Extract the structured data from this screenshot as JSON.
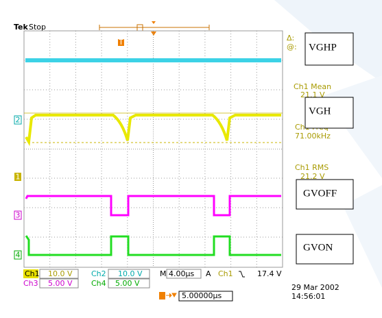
{
  "header": {
    "brand": "Tek",
    "status": "Stop",
    "trigger_marker": "T"
  },
  "channel_markers": {
    "ch2": "2",
    "ch1": "1",
    "ch3": "3",
    "ch4": "4"
  },
  "side_readouts": {
    "delta": "Δ:",
    "at": "@:",
    "mean_label": "Ch1 Mean",
    "mean_value": "21.1 V",
    "freq_label": "Ch1 Freq",
    "freq_value": "71.00kHz",
    "rms_label": "Ch1 RMS",
    "rms_value": "21.2 V"
  },
  "annotations": [
    "VGHP",
    "VGH",
    "GVOFF",
    "GVON"
  ],
  "settings": {
    "ch1": "Ch1",
    "ch1_scale": "10.0 V",
    "ch2": "Ch2",
    "ch2_scale": "10.0 V",
    "ch3": "Ch3",
    "ch3_scale": "5.00 V",
    "ch4": "Ch4",
    "ch4_scale": "5.00 V",
    "timebase": "M 4.00µs",
    "trigger_mode": "A",
    "trigger_source": "Ch1",
    "trigger_level": "17.4 V",
    "trigger_offset": "5.00000µs"
  },
  "timestamp": {
    "date": "29 Mar 2002",
    "time": "14:56:01"
  }
}
